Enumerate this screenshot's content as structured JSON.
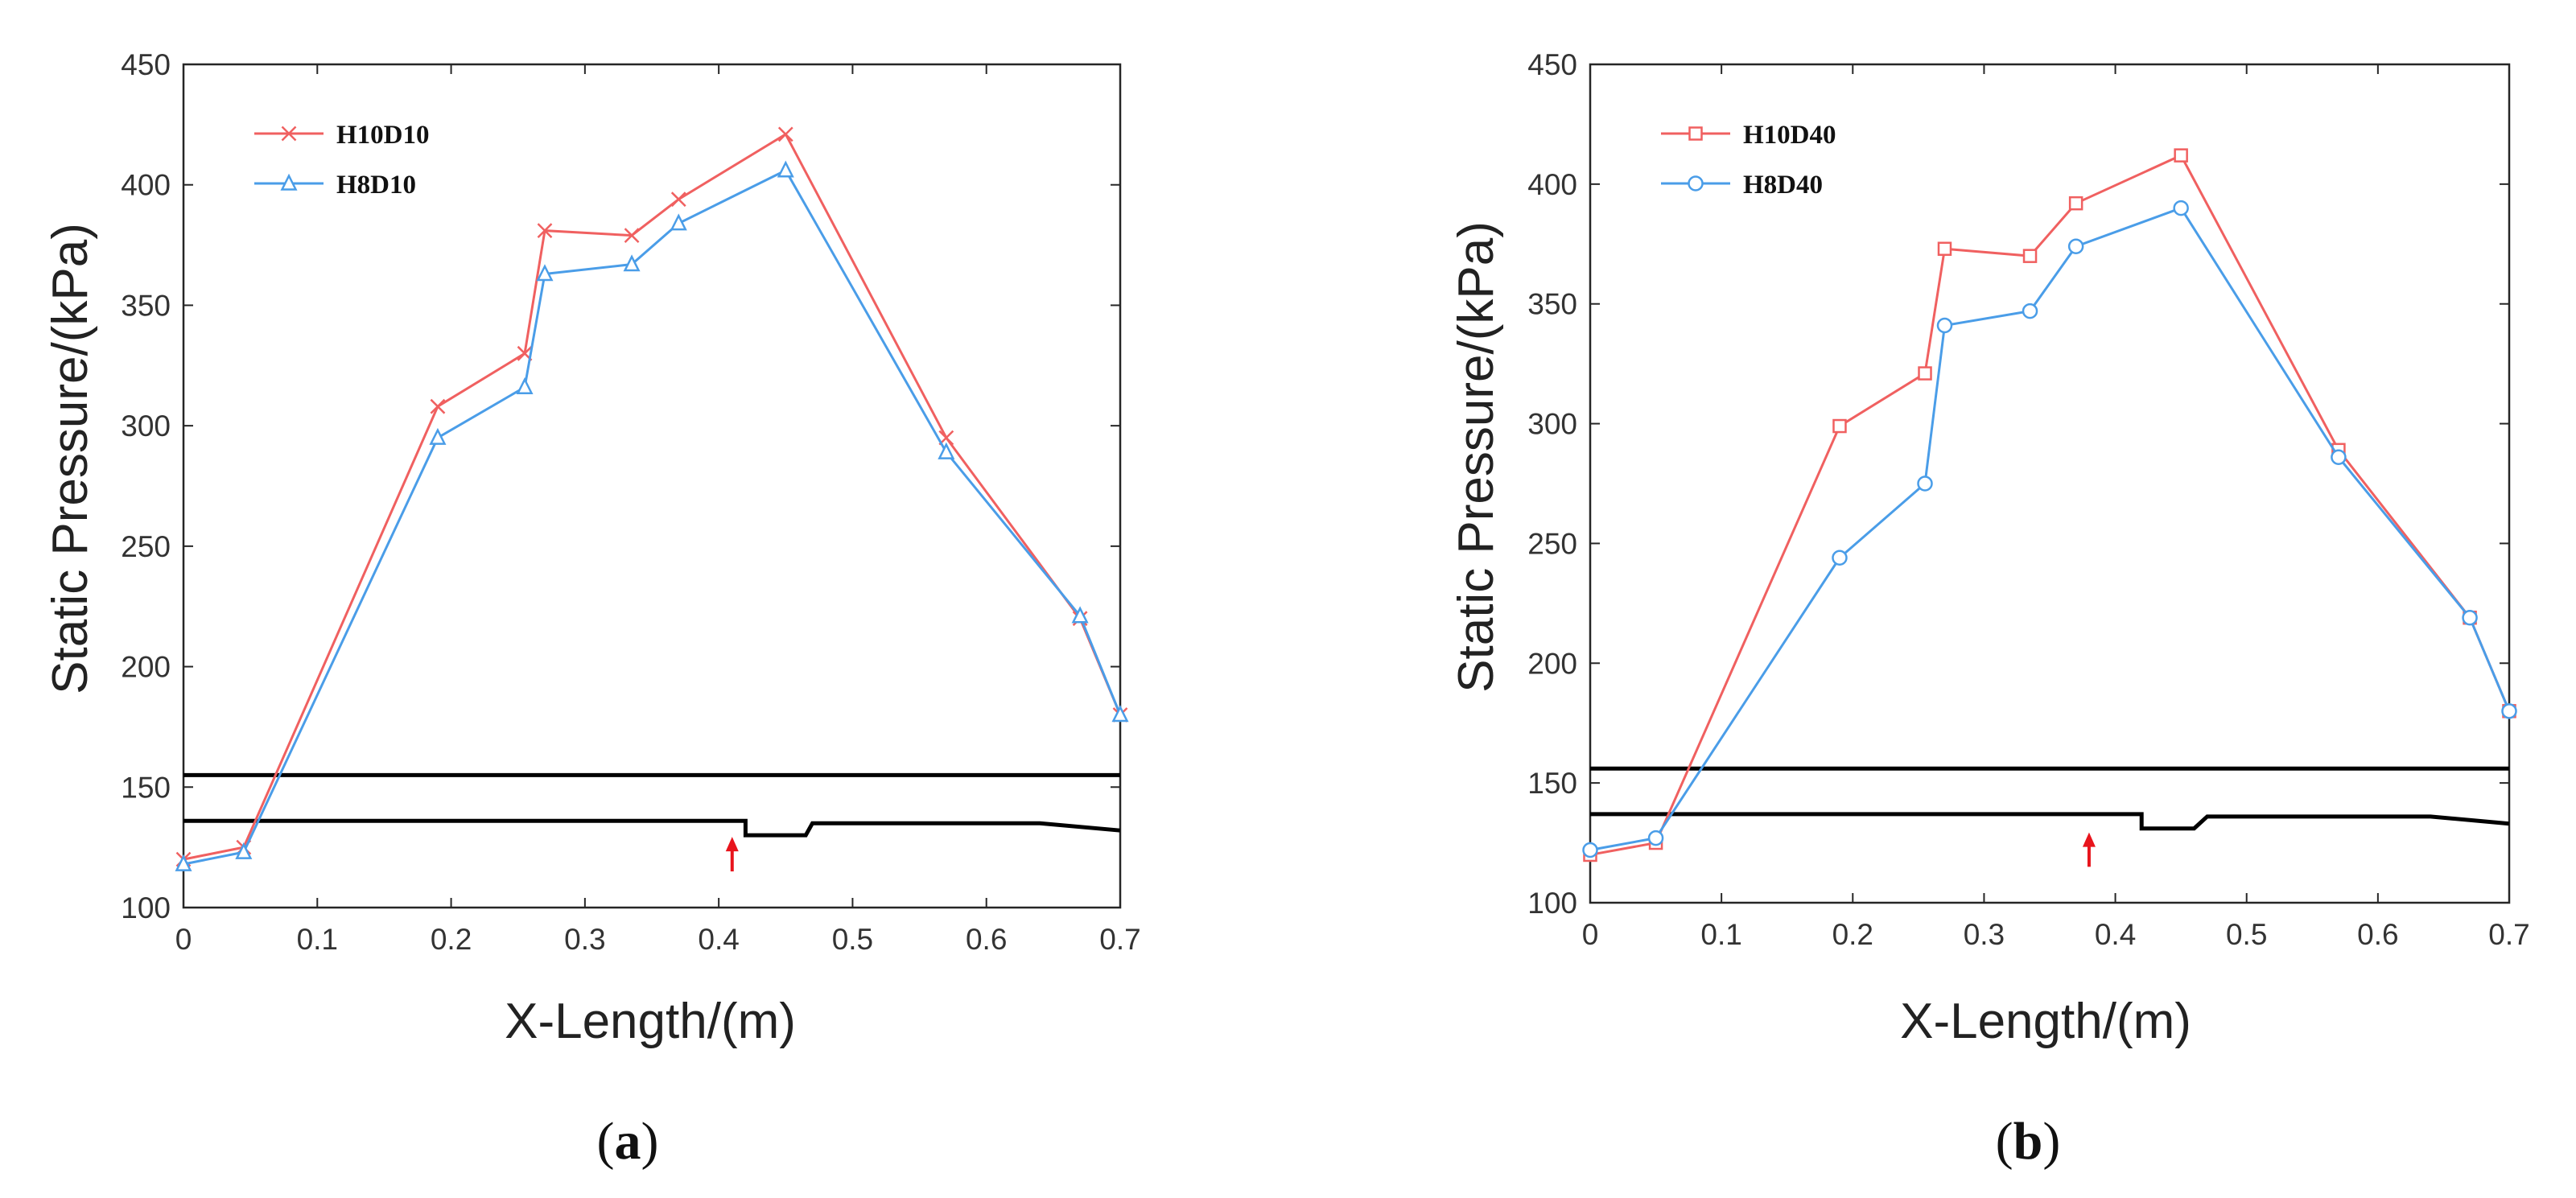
{
  "chart_data": [
    {
      "type": "line",
      "panel": "a",
      "panel_label": {
        "open": "(",
        "letter": "a",
        "close": ")"
      },
      "xlabel": "X-Length/(m)",
      "ylabel": "Static  Pressure/(kPa)",
      "xlim": [
        0,
        0.7
      ],
      "ylim": [
        100,
        450
      ],
      "xticks": [
        0,
        0.1,
        0.2,
        0.3,
        0.4,
        0.5,
        0.6,
        0.7
      ],
      "xtick_labels": [
        "0",
        "0.1",
        "0.2",
        "0.3",
        "0.4",
        "0.5",
        "0.6",
        "0.7"
      ],
      "yticks": [
        100,
        150,
        200,
        250,
        300,
        350,
        400,
        450
      ],
      "ytick_labels": [
        "100",
        "150",
        "200",
        "250",
        "300",
        "350",
        "400",
        "450"
      ],
      "legend_position": "top-left",
      "series": [
        {
          "name": "H10D10",
          "color": "#f06060",
          "marker": "x",
          "x": [
            0,
            0.045,
            0.19,
            0.255,
            0.27,
            0.335,
            0.37,
            0.45,
            0.57,
            0.67,
            0.7
          ],
          "y": [
            120,
            125,
            308,
            330,
            381,
            379,
            394,
            421,
            295,
            220,
            180
          ]
        },
        {
          "name": "H8D10",
          "color": "#4a9de8",
          "marker": "triangle",
          "x": [
            0,
            0.045,
            0.19,
            0.255,
            0.27,
            0.335,
            0.37,
            0.45,
            0.57,
            0.67,
            0.7
          ],
          "y": [
            118,
            123,
            295,
            316,
            363,
            367,
            384,
            406,
            289,
            221,
            180
          ]
        }
      ],
      "overlay": {
        "color": "#000000",
        "red_arrow_x": 0.41,
        "top_line": [
          [
            0,
            155
          ],
          [
            0.7,
            155
          ]
        ],
        "bottom_profile": [
          [
            0,
            136
          ],
          [
            0.42,
            136
          ],
          [
            0.42,
            130
          ],
          [
            0.465,
            130
          ],
          [
            0.47,
            135
          ],
          [
            0.64,
            135
          ],
          [
            0.7,
            132
          ]
        ]
      }
    },
    {
      "type": "line",
      "panel": "b",
      "panel_label": {
        "open": "(",
        "letter": "b",
        "close": ")"
      },
      "xlabel": "X-Length/(m)",
      "ylabel": "Static  Pressure/(kPa)",
      "xlim": [
        0,
        0.7
      ],
      "ylim": [
        100,
        450
      ],
      "xticks": [
        0,
        0.1,
        0.2,
        0.3,
        0.4,
        0.5,
        0.6,
        0.7
      ],
      "xtick_labels": [
        "0",
        "0.1",
        "0.2",
        "0.3",
        "0.4",
        "0.5",
        "0.6",
        "0.7"
      ],
      "yticks": [
        100,
        150,
        200,
        250,
        300,
        350,
        400,
        450
      ],
      "ytick_labels": [
        "100",
        "150",
        "200",
        "250",
        "300",
        "350",
        "400",
        "450"
      ],
      "legend_position": "top-left",
      "series": [
        {
          "name": "H10D40",
          "color": "#f06060",
          "marker": "square",
          "x": [
            0,
            0.05,
            0.19,
            0.255,
            0.27,
            0.335,
            0.37,
            0.45,
            0.57,
            0.67,
            0.7
          ],
          "y": [
            120,
            125,
            299,
            321,
            373,
            370,
            392,
            412,
            289,
            219,
            180
          ]
        },
        {
          "name": "H8D40",
          "color": "#4a9de8",
          "marker": "circle",
          "x": [
            0,
            0.05,
            0.19,
            0.255,
            0.27,
            0.335,
            0.37,
            0.45,
            0.57,
            0.67,
            0.7
          ],
          "y": [
            122,
            127,
            244,
            275,
            341,
            347,
            374,
            390,
            286,
            219,
            180
          ]
        }
      ],
      "overlay": {
        "color": "#000000",
        "red_arrow_x": 0.38,
        "top_line": [
          [
            0,
            156
          ],
          [
            0.7,
            156
          ]
        ],
        "bottom_profile": [
          [
            0,
            137
          ],
          [
            0.42,
            137
          ],
          [
            0.42,
            131
          ],
          [
            0.46,
            131
          ],
          [
            0.47,
            136
          ],
          [
            0.64,
            136
          ],
          [
            0.7,
            133
          ]
        ]
      }
    }
  ]
}
